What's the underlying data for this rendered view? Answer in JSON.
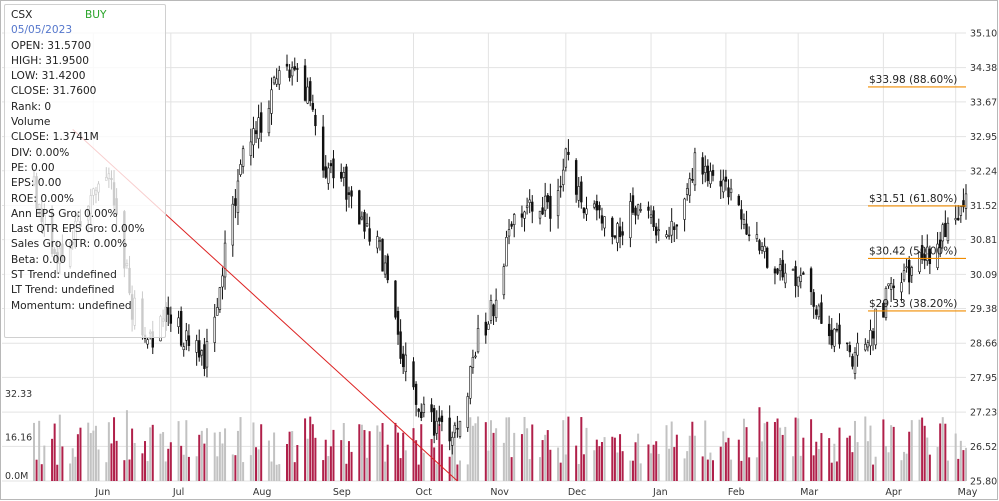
{
  "info_panel": {
    "symbol": "CSX",
    "signal": "BUY",
    "date": "05/05/2023",
    "open": "OPEN: 31.5700",
    "high": "HIGH: 31.9500",
    "low": "LOW: 31.4200",
    "close": "CLOSE: 31.7600",
    "rank": "Rank: 0",
    "volume_label": "Volume",
    "volume_close": "CLOSE: 1.3741M",
    "div": "DIV: 0.00%",
    "pe": "PE: 0.00",
    "eps": "EPS: 0.00",
    "roe": "ROE: 0.00%",
    "ann_eps": "Ann EPS Gro: 0.00%",
    "last_qtr_eps": "Last QTR EPS Gro: 0.00%",
    "sales_gro": "Sales Gro QTR: 0.00%",
    "beta": "Beta: 0.00",
    "st_trend": "ST Trend: undefined",
    "lt_trend": "LT Trend: undefined",
    "momentum": "Momentum: undefined"
  },
  "colors": {
    "up_volume": "#c2c2c2",
    "down_volume": "#b0204a",
    "candle": "#111111",
    "trendline": "#dd2222",
    "fib_line": "#f08c00",
    "grid": "#e3e3e3"
  },
  "chart_data": {
    "type": "candlestick",
    "symbol": "CSX",
    "y_range": [
      25.8,
      35.1
    ],
    "y_ticks": [
      "35.10",
      "34.38",
      "33.67",
      "32.95",
      "32.24",
      "31.52",
      "30.81",
      "30.09",
      "29.38",
      "28.66",
      "27.95",
      "27.23",
      "26.52",
      "25.80"
    ],
    "volume_ticks": [
      "32.33",
      "16.16",
      "0.0M"
    ],
    "volume_range": [
      0,
      42
    ],
    "x_labels": [
      "Jun",
      "Jul",
      "Aug",
      "Sep",
      "Oct",
      "Nov",
      "Dec",
      "Jan",
      "Feb",
      "Mar",
      "Apr",
      "May"
    ],
    "fib_levels": [
      {
        "price": 33.98,
        "label": "$33.98 (88.60%)"
      },
      {
        "price": 31.51,
        "label": "$31.51 (61.80%)"
      },
      {
        "price": 30.42,
        "label": "$30.42 (50.00%)"
      },
      {
        "price": 29.33,
        "label": "$29.33 (38.20%)"
      }
    ],
    "trendline": {
      "from": {
        "date": "2022-05-24",
        "price": 33.1
      },
      "to": {
        "date": "2022-10-20",
        "price": 25.8
      }
    },
    "price_path": [
      [
        "2022-05-09",
        31.9
      ],
      [
        "2022-05-17",
        30.3
      ],
      [
        "2022-05-24",
        31.0
      ],
      [
        "2022-06-01",
        31.8
      ],
      [
        "2022-06-08",
        32.0
      ],
      [
        "2022-06-16",
        29.4
      ],
      [
        "2022-06-24",
        28.8
      ],
      [
        "2022-06-30",
        29.2
      ],
      [
        "2022-07-08",
        28.7
      ],
      [
        "2022-07-14",
        28.3
      ],
      [
        "2022-07-22",
        30.5
      ],
      [
        "2022-07-28",
        32.4
      ],
      [
        "2022-08-05",
        33.2
      ],
      [
        "2022-08-12",
        34.5
      ],
      [
        "2022-08-18",
        34.2
      ],
      [
        "2022-08-23",
        33.8
      ],
      [
        "2022-08-30",
        32.3
      ],
      [
        "2022-09-06",
        32.0
      ],
      [
        "2022-09-13",
        31.3
      ],
      [
        "2022-09-22",
        30.3
      ],
      [
        "2022-09-29",
        28.3
      ],
      [
        "2022-10-06",
        27.3
      ],
      [
        "2022-10-13",
        26.9
      ],
      [
        "2022-10-20",
        26.7
      ],
      [
        "2022-10-27",
        28.6
      ],
      [
        "2022-11-03",
        29.4
      ],
      [
        "2022-11-10",
        31.2
      ],
      [
        "2022-11-17",
        31.7
      ],
      [
        "2022-11-25",
        31.4
      ],
      [
        "2022-12-01",
        32.5
      ],
      [
        "2022-12-08",
        31.6
      ],
      [
        "2022-12-15",
        31.2
      ],
      [
        "2022-12-22",
        31.1
      ],
      [
        "2022-12-29",
        31.6
      ],
      [
        "2023-01-06",
        30.9
      ],
      [
        "2023-01-13",
        31.2
      ],
      [
        "2023-01-20",
        32.4
      ],
      [
        "2023-01-27",
        31.9
      ],
      [
        "2023-02-03",
        31.7
      ],
      [
        "2023-02-10",
        31.0
      ],
      [
        "2023-02-17",
        30.5
      ],
      [
        "2023-02-24",
        30.1
      ],
      [
        "2023-03-03",
        29.9
      ],
      [
        "2023-03-10",
        29.2
      ],
      [
        "2023-03-17",
        28.6
      ],
      [
        "2023-03-23",
        28.3
      ],
      [
        "2023-03-30",
        29.0
      ],
      [
        "2023-04-06",
        29.8
      ],
      [
        "2023-04-13",
        30.2
      ],
      [
        "2023-04-20",
        30.5
      ],
      [
        "2023-04-27",
        31.0
      ],
      [
        "2023-05-05",
        31.76
      ]
    ]
  }
}
